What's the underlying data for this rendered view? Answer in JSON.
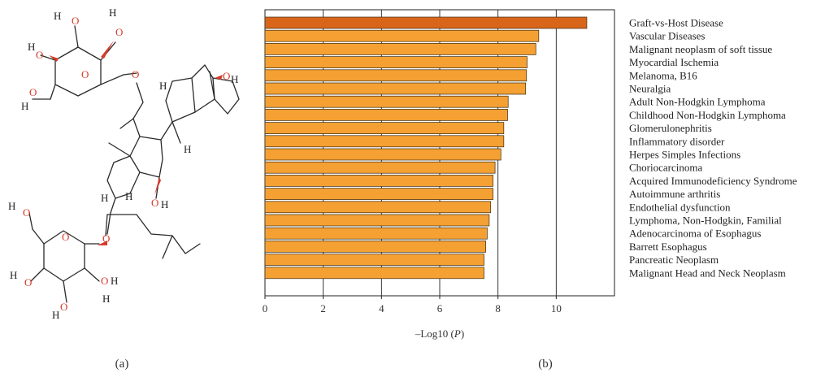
{
  "panel_labels": {
    "a": "(a)",
    "b": "(b)"
  },
  "molecule": {
    "atom_o": "O",
    "atom_h": "H",
    "atom_oh": "OH",
    "atom_oh_h": "O–H"
  },
  "colors": {
    "highlight_bar": "#d9651a",
    "bar": "#f4a033",
    "bar_stroke": "#3a2a10",
    "oxygen": "#d63a2a",
    "bond": "#2a2a2a"
  },
  "chart_data": {
    "type": "bar",
    "orientation": "horizontal",
    "categories": [
      "Graft-vs-Host Disease",
      "Vascular Diseases",
      "Malignant neoplasm of soft tissue",
      "Myocardial Ischemia",
      "Melanoma, B16",
      "Neuralgia",
      "Adult Non-Hodgkin Lymphoma",
      "Childhood Non-Hodgkin Lymphoma",
      "Glomerulonephritis",
      "Inflammatory disorder",
      "Herpes Simples Infections",
      "Choriocarcinoma",
      "Acquired Immunodeficiency Syndrome",
      "Autoimmune arthritis",
      "Endothelial dysfunction",
      "Lymphoma, Non-Hodgkin, Familial",
      "Adenocarcinoma of Esophagus",
      "Barrett Esophagus",
      "Pancreatic Neoplasm",
      "Malignant Head and Neck Neoplasm"
    ],
    "values": [
      11.05,
      9.4,
      9.3,
      9.0,
      8.98,
      8.95,
      8.35,
      8.33,
      8.2,
      8.2,
      8.1,
      7.9,
      7.83,
      7.83,
      7.75,
      7.7,
      7.63,
      7.58,
      7.52,
      7.52
    ],
    "highlight_index": 0,
    "xlabel": "–Log10 (",
    "xlabel_italic": "P",
    "xlabel_end": ")",
    "xlim": [
      0,
      12
    ],
    "xticks": [
      0,
      2,
      4,
      6,
      8,
      10
    ],
    "grid": "vertical"
  }
}
